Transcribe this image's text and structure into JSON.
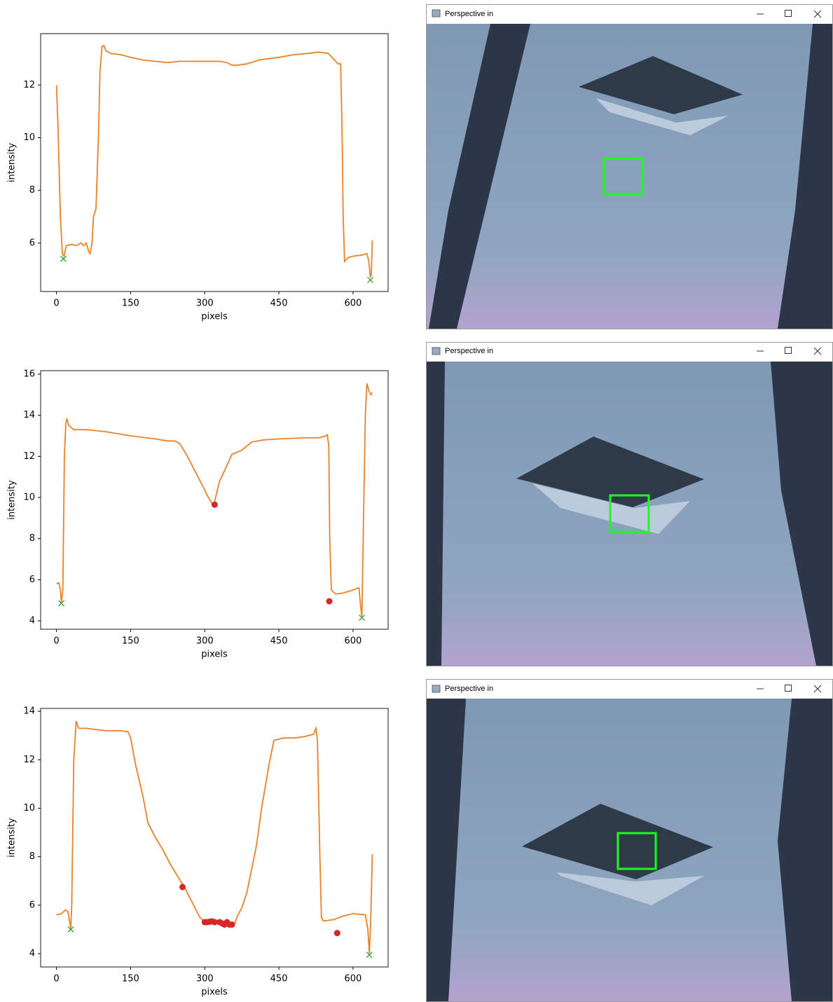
{
  "chart_data": [
    {
      "type": "line",
      "x_label": "pixels",
      "y_label": "intensity",
      "x": [
        0,
        3,
        8,
        12,
        15,
        20,
        30,
        40,
        50,
        55,
        60,
        65,
        68,
        72,
        75,
        80,
        85,
        88,
        92,
        96,
        100,
        110,
        130,
        150,
        175,
        200,
        225,
        250,
        275,
        300,
        330,
        345,
        355,
        365,
        385,
        410,
        430,
        450,
        480,
        510,
        530,
        550,
        565,
        570,
        575,
        578,
        580,
        583,
        590,
        600,
        620,
        628,
        632,
        635,
        637,
        639
      ],
      "series": [
        {
          "color": "#e8832a",
          "values": [
            12,
            10.5,
            7,
            5.6,
            5.5,
            5.9,
            5.95,
            5.9,
            6.0,
            5.9,
            6.0,
            5.7,
            5.6,
            6.0,
            7.0,
            7.3,
            10,
            12.5,
            13.45,
            13.5,
            13.3,
            13.2,
            13.15,
            13.05,
            12.95,
            12.9,
            12.85,
            12.9,
            12.9,
            12.9,
            12.9,
            12.85,
            12.75,
            12.75,
            12.8,
            12.95,
            13.0,
            13.05,
            13.15,
            13.2,
            13.25,
            13.2,
            12.9,
            12.8,
            12.8,
            10,
            7,
            5.3,
            5.45,
            5.5,
            5.55,
            5.6,
            5.3,
            4.7,
            4.8,
            6.1
          ]
        }
      ],
      "markers": [
        {
          "marker": "x",
          "color": "#2ca02c",
          "x": [
            14,
            635
          ],
          "values": [
            5.4,
            4.6
          ]
        }
      ],
      "xlim": [
        -32,
        671
      ],
      "ylim": [
        4.16,
        13.95
      ],
      "xticks": [
        0,
        150,
        300,
        450,
        600
      ],
      "yticks": [
        6,
        8,
        10,
        12
      ]
    },
    {
      "type": "line",
      "x_label": "pixels",
      "y_label": "intensity",
      "x": [
        0,
        5,
        8,
        10,
        13,
        16,
        19,
        21,
        25,
        35,
        60,
        100,
        150,
        200,
        225,
        240,
        250,
        265,
        280,
        295,
        305,
        315,
        320,
        330,
        340,
        355,
        375,
        395,
        420,
        450,
        500,
        530,
        545,
        548,
        551,
        553,
        556,
        565,
        580,
        600,
        612,
        615,
        618,
        622,
        625,
        628,
        632,
        636,
        639
      ],
      "series": [
        {
          "color": "#e8832a",
          "values": [
            5.8,
            5.85,
            5.5,
            4.9,
            5.5,
            12,
            13.6,
            13.85,
            13.5,
            13.3,
            13.3,
            13.2,
            13.0,
            12.85,
            12.75,
            12.75,
            12.6,
            12.0,
            11.3,
            10.6,
            10.1,
            9.7,
            9.8,
            10.8,
            11.3,
            12.1,
            12.3,
            12.7,
            12.8,
            12.85,
            12.9,
            12.9,
            13.0,
            13.05,
            12.5,
            8,
            5.5,
            5.3,
            5.35,
            5.5,
            5.6,
            4.8,
            4.2,
            10,
            14,
            15.55,
            15.2,
            15.0,
            15.1
          ]
        }
      ],
      "markers": [
        {
          "marker": "x",
          "color": "#2ca02c",
          "x": [
            10,
            618
          ],
          "values": [
            4.85,
            4.15
          ]
        },
        {
          "marker": "o",
          "color": "#d62728",
          "x": [
            320,
            552
          ],
          "values": [
            9.65,
            4.95
          ]
        }
      ],
      "xlim": [
        -32,
        671
      ],
      "ylim": [
        3.59,
        16.17
      ],
      "xticks": [
        0,
        150,
        300,
        450,
        600
      ],
      "yticks": [
        4,
        6,
        8,
        10,
        12,
        14,
        16
      ]
    },
    {
      "type": "line",
      "x_label": "pixels",
      "y_label": "intensity",
      "x": [
        0,
        10,
        18,
        23,
        27,
        29,
        31,
        35,
        40,
        45,
        60,
        80,
        100,
        130,
        145,
        150,
        160,
        175,
        185,
        200,
        215,
        230,
        245,
        260,
        275,
        290,
        300,
        320,
        340,
        360,
        365,
        375,
        385,
        395,
        405,
        415,
        430,
        440,
        460,
        480,
        500,
        510,
        520,
        525,
        528,
        533,
        536,
        540,
        560,
        580,
        600,
        625,
        630,
        633,
        636,
        639
      ],
      "series": [
        {
          "color": "#e8832a",
          "values": [
            5.6,
            5.65,
            5.8,
            5.75,
            5.3,
            5.05,
            6,
            12,
            13.6,
            13.3,
            13.3,
            13.25,
            13.2,
            13.2,
            13.15,
            12.9,
            11.8,
            10.5,
            9.4,
            8.8,
            8.3,
            7.7,
            7.2,
            6.7,
            6.1,
            5.5,
            5.3,
            5.3,
            5.25,
            5.2,
            5.5,
            5.9,
            6.5,
            7.5,
            8.5,
            10,
            11.8,
            12.8,
            12.9,
            12.9,
            12.95,
            13.0,
            13.05,
            13.3,
            12.8,
            8,
            5.5,
            5.35,
            5.4,
            5.55,
            5.65,
            5.6,
            5.0,
            4.0,
            5.5,
            8.1
          ]
        }
      ],
      "markers": [
        {
          "marker": "x",
          "color": "#2ca02c",
          "x": [
            29,
            633
          ],
          "values": [
            5.0,
            3.95
          ]
        },
        {
          "marker": "o",
          "color": "#d62728",
          "x": [
            255,
            300,
            305,
            310,
            315,
            320,
            330,
            335,
            340,
            345,
            350,
            355,
            568
          ],
          "values": [
            6.75,
            5.3,
            5.3,
            5.32,
            5.33,
            5.3,
            5.3,
            5.25,
            5.2,
            5.3,
            5.2,
            5.2,
            4.85
          ]
        }
      ],
      "xlim": [
        -32,
        671
      ],
      "ylim": [
        3.45,
        14.12
      ],
      "xticks": [
        0,
        150,
        300,
        450,
        600
      ],
      "yticks": [
        4,
        6,
        8,
        10,
        12,
        14
      ]
    }
  ],
  "windows": [
    {
      "title": "Perspective in"
    },
    {
      "title": "Perspective in"
    },
    {
      "title": "Perspective in"
    }
  ]
}
